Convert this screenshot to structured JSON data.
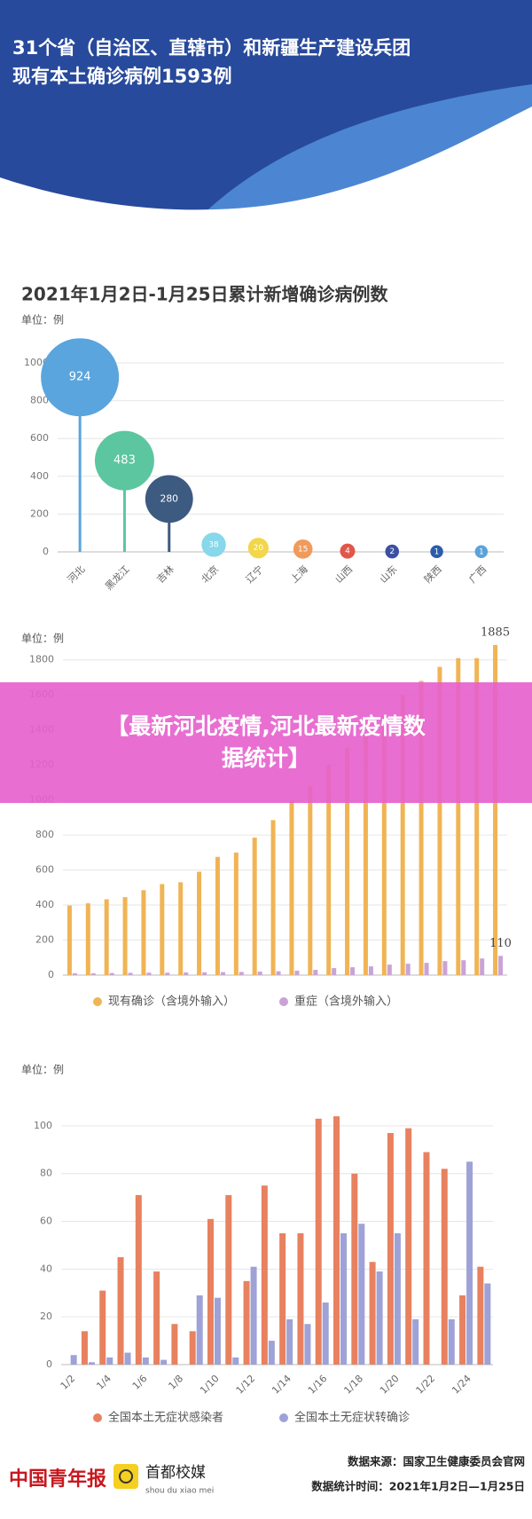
{
  "header": {
    "title_lines": [
      "31个省（自治区、直辖市）和新疆生产建设兵团",
      "现有本土确诊病例1593例"
    ]
  },
  "chart_data": [
    {
      "type": "bubble",
      "title": "2021年1月2日-1月25日累计新增确诊病例数",
      "unit": "单位：例",
      "categories": [
        "河北",
        "黑龙江",
        "吉林",
        "北京",
        "辽宁",
        "上海",
        "山西",
        "山东",
        "陕西",
        "广西"
      ],
      "values": [
        924,
        483,
        280,
        38,
        20,
        15,
        4,
        2,
        1,
        1
      ],
      "colors": [
        "#5aa5dd",
        "#5cc6a0",
        "#3d5a80",
        "#86d8ea",
        "#f2d64b",
        "#f19a5c",
        "#e0574a",
        "#3c4fa3",
        "#2b5caa",
        "#5aa3da"
      ],
      "ylim": [
        0,
        1000
      ],
      "yticks": [
        0,
        200,
        400,
        600,
        800,
        1000
      ],
      "grid": true
    },
    {
      "type": "bar",
      "unit": "单位：例",
      "categories": [
        null,
        null,
        null,
        null,
        null,
        null,
        null,
        null,
        null,
        null,
        null,
        null,
        null,
        null,
        null,
        null,
        null,
        null,
        null,
        null,
        null,
        null,
        null,
        null
      ],
      "series": [
        {
          "name": "现有确诊（含境外输入）",
          "color": "#f0b455",
          "values": [
            397,
            410,
            433,
            445,
            485,
            520,
            530,
            590,
            675,
            700,
            785,
            885,
            1000,
            1080,
            1200,
            1300,
            1380,
            1480,
            1600,
            1680,
            1760,
            1810,
            1810,
            1885
          ],
          "value_labels": [
            null,
            null,
            null,
            null,
            null,
            null,
            null,
            null,
            null,
            null,
            null,
            null,
            null,
            null,
            null,
            null,
            null,
            null,
            null,
            null,
            null,
            null,
            null,
            "1885"
          ]
        },
        {
          "name": "重症（含境外输入）",
          "color": "#c9a3d6",
          "values": [
            10,
            10,
            12,
            13,
            14,
            14,
            15,
            16,
            17,
            18,
            20,
            22,
            25,
            30,
            40,
            45,
            50,
            60,
            65,
            70,
            80,
            85,
            95,
            110
          ],
          "value_labels": [
            null,
            null,
            null,
            null,
            null,
            null,
            null,
            null,
            null,
            null,
            null,
            null,
            null,
            null,
            null,
            null,
            null,
            null,
            null,
            null,
            null,
            null,
            null,
            "110"
          ]
        }
      ],
      "ylim": [
        0,
        1900
      ],
      "yticks": [
        0,
        200,
        400,
        600,
        800,
        1000,
        1200,
        1400,
        1600,
        1800
      ],
      "grid": true
    },
    {
      "type": "bar",
      "unit": "单位：例",
      "categories": [
        "1/2",
        null,
        "1/4",
        null,
        "1/6",
        null,
        "1/8",
        null,
        "1/10",
        null,
        "1/12",
        null,
        "1/14",
        null,
        "1/16",
        null,
        "1/18",
        null,
        "1/20",
        null,
        "1/22",
        null,
        "1/24",
        null
      ],
      "series": [
        {
          "name": "全国本土无症状感染者",
          "color": "#e8815f",
          "values": [
            0,
            14,
            31,
            45,
            71,
            39,
            17,
            14,
            61,
            71,
            35,
            75,
            55,
            55,
            103,
            104,
            80,
            43,
            97,
            99,
            89,
            82,
            29,
            41
          ]
        },
        {
          "name": "全国本土无症状转确诊",
          "color": "#9ea2d6",
          "values": [
            4,
            1,
            3,
            5,
            3,
            2,
            0,
            29,
            28,
            3,
            41,
            10,
            19,
            17,
            26,
            55,
            59,
            39,
            55,
            19,
            0,
            19,
            85,
            34
          ]
        }
      ],
      "ylim": [
        0,
        110
      ],
      "yticks": [
        0,
        20,
        40,
        60,
        80,
        100
      ],
      "grid": true
    }
  ],
  "banner": {
    "lines": [
      "【最新河北疫情,河北最新疫情数",
      "据统计】"
    ]
  },
  "footer": {
    "logo_left": "中国青年报",
    "logo_right": "首都校媒",
    "logo_right_pinyin": "shou du xiao mei",
    "source": "数据来源：国家卫生健康委员会官网",
    "period": "数据统计时间：2021年1月2日—1月25日"
  }
}
